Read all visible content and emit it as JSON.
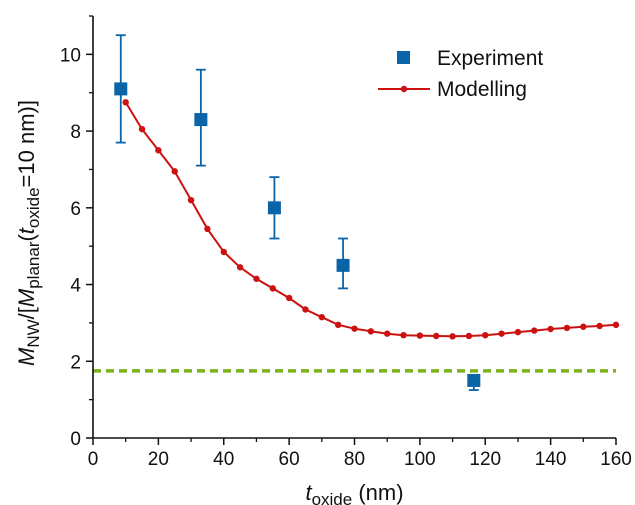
{
  "chart_data": {
    "type": "scatter",
    "x_axis": {
      "range": [
        0,
        160
      ],
      "ticks": [
        0,
        20,
        40,
        60,
        80,
        100,
        120,
        140,
        160
      ],
      "label_main": "t",
      "label_sub": "oxide",
      "label_unit": " (nm)"
    },
    "y_axis": {
      "range": [
        0,
        11
      ],
      "ticks": [
        0,
        2,
        4,
        6,
        8,
        10
      ],
      "label_part1": "M",
      "label_part2": "NW",
      "label_part3": "/[",
      "label_part4": "M",
      "label_part5": "planar",
      "label_part6": "(",
      "label_part7": "t",
      "label_part8": "oxide",
      "label_part9": "=10 nm)]"
    },
    "legend": {
      "placement": "top-right",
      "experiment_label": "Experiment",
      "modelling_label": "Modelling"
    },
    "series": [
      {
        "name": "Experiment",
        "kind": "points-with-errorbars",
        "color": "#0b63a8",
        "points": [
          {
            "x": 8.5,
            "y": 9.1,
            "err_low": 7.7,
            "err_high": 10.5
          },
          {
            "x": 33,
            "y": 8.3,
            "err_low": 7.1,
            "err_high": 9.6
          },
          {
            "x": 55.5,
            "y": 6.0,
            "err_low": 5.2,
            "err_high": 6.8
          },
          {
            "x": 76.5,
            "y": 4.5,
            "err_low": 3.9,
            "err_high": 5.2
          },
          {
            "x": 116.5,
            "y": 1.5,
            "err_low": 1.25,
            "err_high": 1.6
          }
        ]
      },
      {
        "name": "Modelling",
        "kind": "line-with-markers",
        "color": "#cc1111",
        "points": [
          {
            "x": 10,
            "y": 8.75
          },
          {
            "x": 15,
            "y": 8.05
          },
          {
            "x": 20,
            "y": 7.5
          },
          {
            "x": 25,
            "y": 6.95
          },
          {
            "x": 30,
            "y": 6.2
          },
          {
            "x": 35,
            "y": 5.45
          },
          {
            "x": 40,
            "y": 4.85
          },
          {
            "x": 45,
            "y": 4.45
          },
          {
            "x": 50,
            "y": 4.15
          },
          {
            "x": 55,
            "y": 3.9
          },
          {
            "x": 60,
            "y": 3.65
          },
          {
            "x": 65,
            "y": 3.35
          },
          {
            "x": 70,
            "y": 3.15
          },
          {
            "x": 75,
            "y": 2.95
          },
          {
            "x": 80,
            "y": 2.85
          },
          {
            "x": 85,
            "y": 2.78
          },
          {
            "x": 90,
            "y": 2.72
          },
          {
            "x": 95,
            "y": 2.68
          },
          {
            "x": 100,
            "y": 2.67
          },
          {
            "x": 105,
            "y": 2.66
          },
          {
            "x": 110,
            "y": 2.65
          },
          {
            "x": 115,
            "y": 2.66
          },
          {
            "x": 120,
            "y": 2.68
          },
          {
            "x": 125,
            "y": 2.72
          },
          {
            "x": 130,
            "y": 2.76
          },
          {
            "x": 135,
            "y": 2.8
          },
          {
            "x": 140,
            "y": 2.84
          },
          {
            "x": 145,
            "y": 2.87
          },
          {
            "x": 150,
            "y": 2.9
          },
          {
            "x": 155,
            "y": 2.92
          },
          {
            "x": 160,
            "y": 2.95
          }
        ]
      },
      {
        "kind": "reference-line",
        "style": "dashed",
        "color": "#7ab317",
        "y": 1.75
      }
    ]
  }
}
